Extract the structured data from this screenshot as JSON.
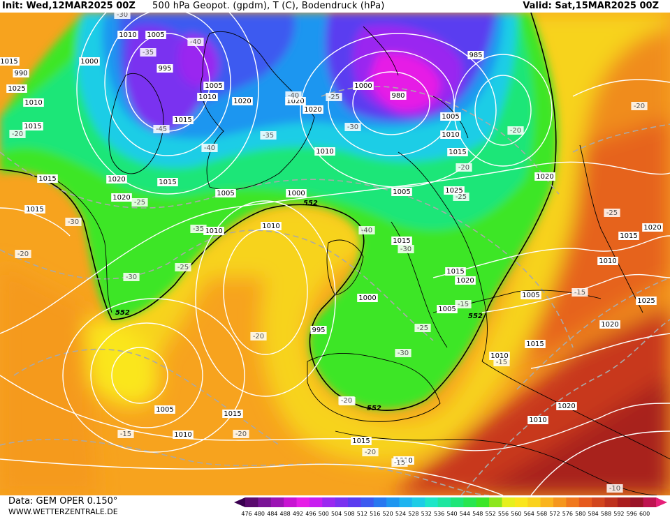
{
  "header": {
    "init": "Init: Wed,12MAR2025 00Z",
    "title": "500 hPa Geopot. (gpdm), T (C), Bodendruck (hPa)",
    "valid": "Valid: Sat,15MAR2025 00Z"
  },
  "footer": {
    "data_source": "Data: GEM OPER 0.150°",
    "website": "WWW.WETTERZENTRALE.DE"
  },
  "colorbar": {
    "ticks": [
      "476",
      "480",
      "484",
      "488",
      "492",
      "496",
      "500",
      "504",
      "508",
      "512",
      "516",
      "520",
      "524",
      "528",
      "532",
      "536",
      "540",
      "544",
      "548",
      "552",
      "556",
      "560",
      "564",
      "568",
      "572",
      "576",
      "580",
      "584",
      "588",
      "592",
      "596",
      "600"
    ],
    "colors": [
      "#5a0a6e",
      "#7a1496",
      "#9c14b4",
      "#c814d2",
      "#e61ee6",
      "#c81ef0",
      "#9a28f0",
      "#7a32f0",
      "#5a3cf0",
      "#3c5af0",
      "#2878f0",
      "#1e96f0",
      "#1eb4f0",
      "#1ecde6",
      "#1ee6c8",
      "#1ee6a0",
      "#1ee678",
      "#28e650",
      "#3ce628",
      "#8ce61e",
      "#e6f01e",
      "#fae61e",
      "#fad21e",
      "#fab41e",
      "#f5961e",
      "#f0781e",
      "#e65a1e",
      "#d2461e",
      "#be321e",
      "#aa1e1e",
      "#9a1428",
      "#be1450"
    ]
  },
  "map": {
    "labels_552": [
      "552",
      "552",
      "552",
      "552"
    ],
    "isobars": [
      "1010",
      "1005",
      "1000",
      "995",
      "990",
      "1015",
      "1020",
      "1025",
      "980",
      "985",
      "1000",
      "1005",
      "1010",
      "1015",
      "1020",
      "1025",
      "1005",
      "1000",
      "1005",
      "1010",
      "1015",
      "1015",
      "1010",
      "1005",
      "1020",
      "1020",
      "1020",
      "1020",
      "1015",
      "1015",
      "1015",
      "1010",
      "1010",
      "1010",
      "1015",
      "1015",
      "1020",
      "1005",
      "1000",
      "995",
      "1005",
      "1010",
      "1015",
      "1020",
      "1025",
      "1020",
      "1015",
      "1010",
      "1020",
      "1010",
      "1010",
      "1015",
      "1015",
      "1010",
      "1005"
    ],
    "isotherms": [
      "-30",
      "-35",
      "-40",
      "-40",
      "-45",
      "-40",
      "-35",
      "-30",
      "-25",
      "-20",
      "-20",
      "-25",
      "-25",
      "-30",
      "-35",
      "-40",
      "-30",
      "-25",
      "-20",
      "-20",
      "-15",
      "-15",
      "-15",
      "-20",
      "-20",
      "-15",
      "-10",
      "-20",
      "-25",
      "-25",
      "-30",
      "-20",
      "-30",
      "-25",
      "-15",
      "-20"
    ]
  }
}
